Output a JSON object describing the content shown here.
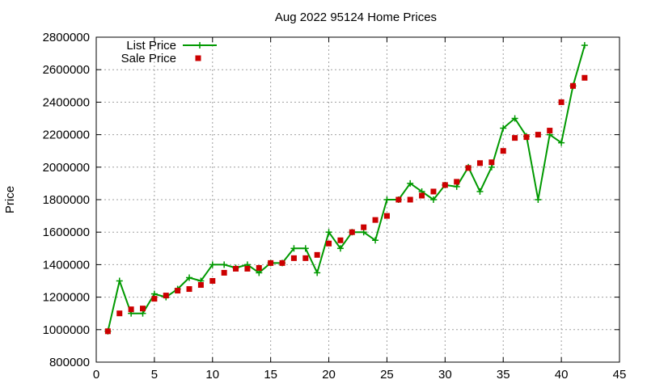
{
  "chart_data": {
    "type": "line",
    "title": "Aug 2022 95124 Home Prices",
    "xlabel": "",
    "ylabel": "Price",
    "xlim": [
      0,
      45
    ],
    "ylim": [
      800000,
      2800000
    ],
    "x_ticks": [
      0,
      5,
      10,
      15,
      20,
      25,
      30,
      35,
      40,
      45
    ],
    "y_ticks": [
      800000,
      1000000,
      1200000,
      1400000,
      1600000,
      1800000,
      2000000,
      2200000,
      2400000,
      2600000,
      2800000
    ],
    "grid": true,
    "legend_position": "top-left",
    "series": [
      {
        "name": "List Price",
        "style": "linespoints",
        "color": "#009900",
        "marker": "plus",
        "x": [
          1,
          2,
          3,
          4,
          5,
          6,
          7,
          8,
          9,
          10,
          11,
          12,
          13,
          14,
          15,
          16,
          17,
          18,
          19,
          20,
          21,
          22,
          23,
          24,
          25,
          26,
          27,
          28,
          29,
          30,
          31,
          32,
          33,
          34,
          35,
          36,
          37,
          38,
          39,
          40,
          41,
          42
        ],
        "y": [
          990000,
          1300000,
          1100000,
          1100000,
          1220000,
          1200000,
          1250000,
          1320000,
          1300000,
          1400000,
          1400000,
          1380000,
          1400000,
          1350000,
          1410000,
          1410000,
          1500000,
          1500000,
          1350000,
          1600000,
          1500000,
          1600000,
          1600000,
          1550000,
          1800000,
          1800000,
          1900000,
          1850000,
          1800000,
          1890000,
          1880000,
          2000000,
          1850000,
          2000000,
          2240000,
          2300000,
          2190000,
          1800000,
          2200000,
          2150000,
          2500000,
          2750000
        ]
      },
      {
        "name": "Sale Price",
        "style": "points",
        "color": "#cc0000",
        "marker": "square",
        "x": [
          1,
          2,
          3,
          4,
          5,
          6,
          7,
          8,
          9,
          10,
          11,
          12,
          13,
          14,
          15,
          16,
          17,
          18,
          19,
          20,
          21,
          22,
          23,
          24,
          25,
          26,
          27,
          28,
          29,
          30,
          31,
          32,
          33,
          34,
          35,
          36,
          37,
          38,
          39,
          40,
          41,
          42
        ],
        "y": [
          990000,
          1100000,
          1125000,
          1130000,
          1190000,
          1210000,
          1240000,
          1250000,
          1275000,
          1300000,
          1350000,
          1375000,
          1375000,
          1380000,
          1410000,
          1410000,
          1440000,
          1440000,
          1460000,
          1530000,
          1550000,
          1600000,
          1630000,
          1675000,
          1700000,
          1800000,
          1800000,
          1825000,
          1850000,
          1890000,
          1910000,
          1995000,
          2025000,
          2030000,
          2100000,
          2180000,
          2185000,
          2200000,
          2225000,
          2400000,
          2500000,
          2550000
        ]
      }
    ]
  }
}
